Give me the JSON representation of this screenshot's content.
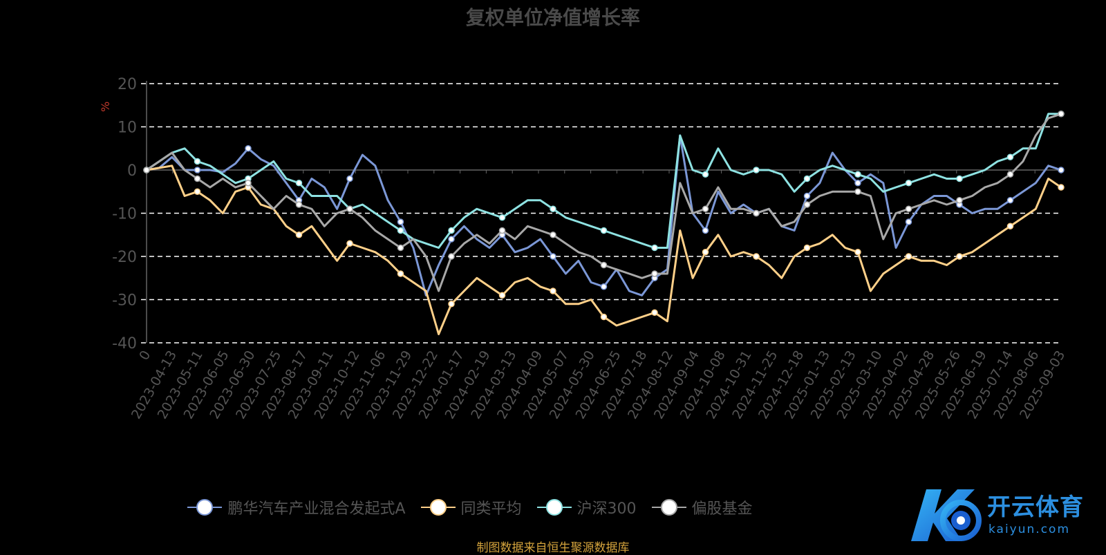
{
  "page": {
    "title": "复权单位净值增长率",
    "source": "制图数据来自恒生聚源数据库",
    "logo": {
      "text": "开云体育",
      "sub": "kaiyun.com",
      "mark": "K"
    }
  },
  "chart_data": {
    "type": "line",
    "title": "复权单位净值增长率",
    "ylabel": "%",
    "ylim": [
      -40,
      20
    ],
    "yticks": [
      20,
      10,
      0,
      -10,
      -20,
      -30,
      -40
    ],
    "grid": true,
    "legend_position": "bottom",
    "x_tick_labels": [
      "0",
      "2023-04-13",
      "2023-05-11",
      "2023-06-05",
      "2023-06-30",
      "2023-07-25",
      "2023-08-17",
      "2023-09-11",
      "2023-10-12",
      "2023-11-06",
      "2023-11-29",
      "2023-12-22",
      "2024-01-17",
      "2024-02-19",
      "2024-03-13",
      "2024-04-09",
      "2024-05-07",
      "2024-05-30",
      "2024-06-25",
      "2024-07-18",
      "2024-08-12",
      "2024-09-04",
      "2024-10-08",
      "2024-10-31",
      "2024-11-25",
      "2024-12-18",
      "2025-01-13",
      "2025-02-13",
      "2025-03-10",
      "2025-04-02",
      "2025-04-28",
      "2025-05-26",
      "2025-06-19",
      "2025-07-14",
      "2025-08-06",
      "2025-09-03"
    ],
    "series": [
      {
        "name": "鹏华汽车产业混合发起式A",
        "color": "#7b97d6",
        "values": [
          0,
          0.5,
          3,
          0,
          0,
          0,
          -0.5,
          1.5,
          5,
          2.5,
          1,
          -3,
          -7,
          -2,
          -4,
          -9,
          -2,
          3.5,
          1,
          -7,
          -12,
          -18,
          -29,
          -22,
          -16,
          -13,
          -16,
          -18,
          -15,
          -19,
          -18,
          -16,
          -20,
          -24,
          -21,
          -26,
          -27,
          -23,
          -28,
          -29,
          -25,
          -23,
          8,
          -10,
          -14,
          -5,
          -10,
          -8,
          -10,
          -9,
          -13,
          -14,
          -6,
          -3,
          4,
          0,
          -3,
          -1,
          -3,
          -18,
          -12,
          -8,
          -6,
          -6,
          -8,
          -10,
          -9,
          -9,
          -7,
          -5,
          -3,
          1,
          0
        ]
      },
      {
        "name": "同类平均",
        "color": "#ffd089",
        "values": [
          0,
          0.5,
          1,
          -6,
          -5,
          -7,
          -10,
          -5,
          -4,
          -8,
          -9,
          -13,
          -15,
          -13,
          -17,
          -21,
          -17,
          -18,
          -19,
          -21,
          -24,
          -26,
          -28,
          -38,
          -31,
          -28,
          -25,
          -27,
          -29,
          -26,
          -25,
          -27,
          -28,
          -31,
          -31,
          -30,
          -34,
          -36,
          -35,
          -34,
          -33,
          -35,
          -14,
          -25,
          -19,
          -15,
          -20,
          -19,
          -20,
          -22,
          -25,
          -20,
          -18,
          -17,
          -15,
          -18,
          -19,
          -28,
          -24,
          -22,
          -20,
          -21,
          -21,
          -22,
          -20,
          -19,
          -17,
          -15,
          -13,
          -11,
          -9,
          -2,
          -4
        ]
      },
      {
        "name": "沪深300",
        "color": "#8ee2e2",
        "values": [
          0,
          2,
          4,
          5,
          2,
          1,
          -1,
          -3,
          -2,
          0,
          2,
          -2,
          -3,
          -6,
          -6,
          -6,
          -9,
          -8,
          -10,
          -12,
          -14,
          -16,
          -17,
          -18,
          -14,
          -11,
          -9,
          -10,
          -11,
          -9,
          -7,
          -7,
          -9,
          -11,
          -12,
          -13,
          -14,
          -15,
          -16,
          -17,
          -18,
          -18,
          8,
          0,
          -1,
          5,
          0,
          -1,
          0,
          0,
          -1,
          -5,
          -2,
          0,
          1,
          0,
          -1,
          -2,
          -5,
          -4,
          -3,
          -2,
          -1,
          -2,
          -2,
          -1,
          0,
          2,
          3,
          5,
          5,
          13,
          13
        ]
      },
      {
        "name": "偏股基金",
        "color": "#a8a8a8",
        "values": [
          0,
          2,
          4,
          0,
          -2,
          -4,
          -2,
          -4,
          -3,
          -6,
          -9,
          -6,
          -8,
          -9,
          -13,
          -10,
          -9,
          -11,
          -14,
          -16,
          -18,
          -16,
          -20,
          -28,
          -20,
          -17,
          -15,
          -17,
          -14,
          -16,
          -13,
          -14,
          -15,
          -17,
          -19,
          -20,
          -22,
          -23,
          -24,
          -25,
          -24,
          -24,
          -3,
          -10,
          -9,
          -4,
          -9,
          -9,
          -10,
          -9,
          -13,
          -12,
          -8,
          -6,
          -5,
          -5,
          -5,
          -6,
          -16,
          -10,
          -9,
          -8,
          -7,
          -8,
          -7,
          -6,
          -4,
          -3,
          -1,
          2,
          8,
          12,
          13
        ]
      }
    ]
  }
}
